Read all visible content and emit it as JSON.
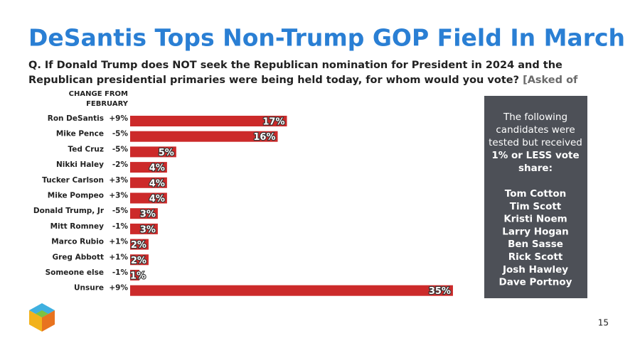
{
  "chart_data": {
    "type": "bar",
    "title": "DeSantis Tops Non-Trump GOP Field In March",
    "question": "Q. If Donald Trump does NOT seek the Republican nomination for President in 2024 and the Republican presidential primaries were being held today, for whom would you vote?",
    "question_note": "[Asked of Republican+Lean Voters]",
    "change_header": [
      "CHANGE FROM",
      "FEBRUARY"
    ],
    "categories": [
      "Ron DeSantis",
      "Mike Pence",
      "Ted Cruz",
      "Nikki Haley",
      "Tucker Carlson",
      "Mike Pompeo",
      "Donald Trump, Jr",
      "Mitt Romney",
      "Marco Rubio",
      "Greg Abbott",
      "Someone else",
      "Unsure"
    ],
    "changes": [
      "+9%",
      "-5%",
      "-5%",
      "-2%",
      "+3%",
      "+3%",
      "-5%",
      "-1%",
      "+1%",
      "+1%",
      "-1%",
      "+9%"
    ],
    "values": [
      17,
      16,
      5,
      4,
      4,
      4,
      3,
      3,
      2,
      2,
      1,
      35
    ],
    "value_labels": [
      "17%",
      "16%",
      "5%",
      "4%",
      "4%",
      "4%",
      "3%",
      "3%",
      "2%",
      "2%",
      "1%",
      "35%"
    ],
    "color": "#cc2a2a",
    "panel": {
      "intro": [
        "The following",
        "candidates were",
        "tested but received"
      ],
      "emphasis": [
        "1% or LESS vote",
        "share:"
      ],
      "names": [
        "Tom Cotton",
        "Tim Scott",
        "Kristi Noem",
        "Larry Hogan",
        "Ben Sasse",
        "Rick Scott",
        "Josh Hawley",
        "Dave Portnoy"
      ]
    },
    "page_number": "15"
  }
}
